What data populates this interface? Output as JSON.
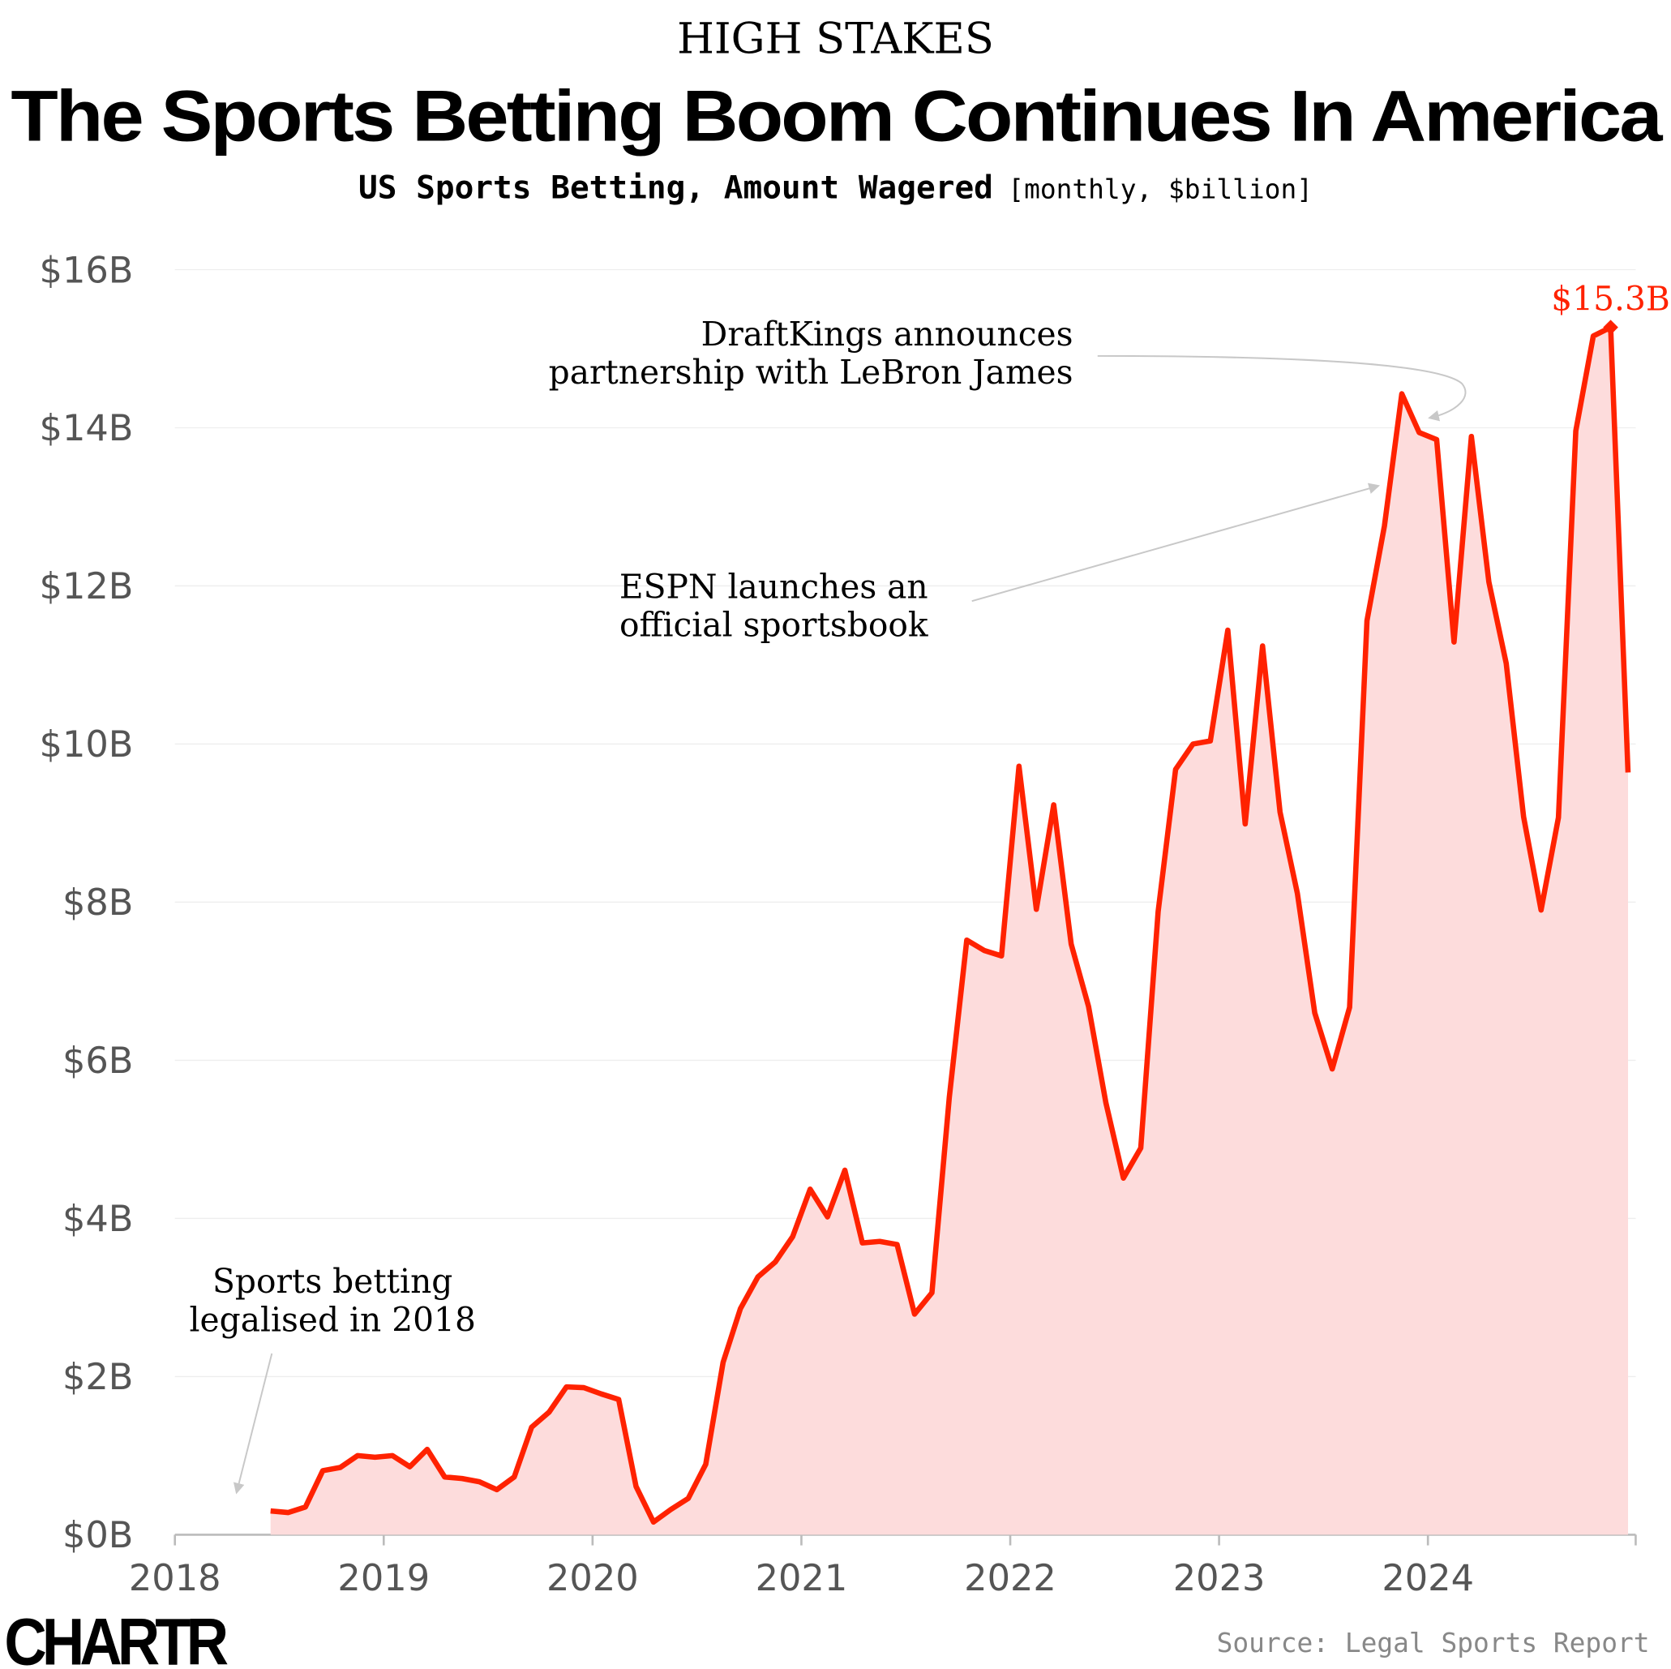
{
  "kicker": "HIGH STAKES",
  "title": "The Sports Betting Boom Continues In America",
  "subtitle": "US Sports Betting, Amount Wagered",
  "subtitle_units": "[monthly, $billion]",
  "source": "Source: Legal Sports Report",
  "logo": "CHARTR",
  "colors": {
    "line": "#ff2200",
    "fill": "#fddcdc",
    "highlight": "#ff2200",
    "grid": "#eeeeee",
    "annotation_arrow": "#c8c8c8"
  },
  "chart_data": {
    "type": "area",
    "title": "The Sports Betting Boom Continues In America",
    "ylabel": "",
    "xlabel": "",
    "ylim": [
      0,
      16
    ],
    "xlim": [
      "2018-01",
      "2024-12"
    ],
    "grid": true,
    "y_ticks": [
      0,
      2,
      4,
      6,
      8,
      10,
      12,
      14,
      16
    ],
    "y_tick_labels": [
      "$0B",
      "$2B",
      "$4B",
      "$6B",
      "$8B",
      "$10B",
      "$12B",
      "$14B",
      "$16B"
    ],
    "x_tick_labels": [
      "2018",
      "2019",
      "2020",
      "2021",
      "2022",
      "2023",
      "2024"
    ],
    "x": [
      "2018-06",
      "2018-07",
      "2018-08",
      "2018-09",
      "2018-10",
      "2018-11",
      "2018-12",
      "2019-01",
      "2019-02",
      "2019-03",
      "2019-04",
      "2019-05",
      "2019-06",
      "2019-07",
      "2019-08",
      "2019-09",
      "2019-10",
      "2019-11",
      "2019-12",
      "2020-01",
      "2020-02",
      "2020-03",
      "2020-04",
      "2020-05",
      "2020-06",
      "2020-07",
      "2020-08",
      "2020-09",
      "2020-10",
      "2020-11",
      "2020-12",
      "2021-01",
      "2021-02",
      "2021-03",
      "2021-04",
      "2021-05",
      "2021-06",
      "2021-07",
      "2021-08",
      "2021-09",
      "2021-10",
      "2021-11",
      "2021-12",
      "2022-01",
      "2022-02",
      "2022-03",
      "2022-04",
      "2022-05",
      "2022-06",
      "2022-07",
      "2022-08",
      "2022-09",
      "2022-10",
      "2022-11",
      "2022-12",
      "2023-01",
      "2023-02",
      "2023-03",
      "2023-04",
      "2023-05",
      "2023-06",
      "2023-07",
      "2023-08",
      "2023-09",
      "2023-10",
      "2023-11",
      "2023-12",
      "2024-01",
      "2024-02",
      "2024-03",
      "2024-04",
      "2024-05",
      "2024-06",
      "2024-07",
      "2024-08",
      "2024-09",
      "2024-10",
      "2024-11",
      "2024-12"
    ],
    "values": [
      0.3,
      0.28,
      0.35,
      0.81,
      0.85,
      1.0,
      0.98,
      1.0,
      0.86,
      1.08,
      0.73,
      0.71,
      0.67,
      0.57,
      0.73,
      1.36,
      1.55,
      1.87,
      1.86,
      1.78,
      1.71,
      0.61,
      0.16,
      0.32,
      0.46,
      0.89,
      2.18,
      2.86,
      3.26,
      3.45,
      3.77,
      4.37,
      4.02,
      4.61,
      3.69,
      3.71,
      3.67,
      2.79,
      3.06,
      5.53,
      7.52,
      7.39,
      7.32,
      9.72,
      7.91,
      9.23,
      7.47,
      6.68,
      5.46,
      4.51,
      4.89,
      7.88,
      9.68,
      10.0,
      10.04,
      11.44,
      8.99,
      11.24,
      9.14,
      8.11,
      6.6,
      5.89,
      6.67,
      11.56,
      12.76,
      14.43,
      13.94,
      13.85,
      11.29,
      13.89,
      12.05,
      11.02,
      9.08,
      7.9,
      9.07,
      13.96,
      15.16,
      15.27,
      9.64
    ],
    "highlight": {
      "x": "2024-11",
      "label": "$15.3B"
    },
    "annotations": [
      {
        "lines": [
          "Sports betting",
          "legalised in 2018"
        ],
        "target": "2018-05"
      },
      {
        "lines": [
          "ESPN launches an",
          "official sportsbook"
        ],
        "target": "2023-10"
      },
      {
        "lines": [
          "DraftKings announces",
          "partnership with LeBron James"
        ],
        "target": "2023-12"
      }
    ]
  }
}
